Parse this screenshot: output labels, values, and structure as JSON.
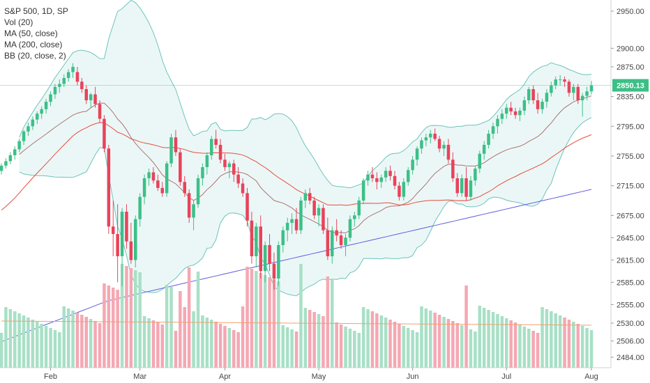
{
  "legend": {
    "line1": "S&P 500, 1D, SP",
    "line2": "Vol (20)",
    "line3": "MA (50, close)",
    "line4": "MA (200, close)",
    "line5": "BB (20, close, 2)"
  },
  "last_price": "2850.13",
  "colors": {
    "up": "#3dbf87",
    "down": "#e8435a",
    "up_vol": "#a8e0c6",
    "down_vol": "#f4a8b3",
    "ma50": "#e74c3c",
    "ma200": "#5b5bdc",
    "bb_band": "#6cc4b8",
    "bb_fill": "#e2f3f3",
    "bb_mid": "#b07070",
    "vol_ma": "#f0a070",
    "price_tag": "#3dbf87"
  },
  "chart_data": {
    "type": "candlestick",
    "title": "S&P 500, 1D, SP",
    "y_ticks": [
      "2950.00",
      "2900.00",
      "2875.00",
      "2835.00",
      "2795.00",
      "2755.00",
      "2715.00",
      "2675.00",
      "2645.00",
      "2615.00",
      "2585.00",
      "2555.00",
      "2530.00",
      "2506.00",
      "2484.00"
    ],
    "x_ticks": [
      "Feb",
      "Mar",
      "Apr",
      "May",
      "Jun",
      "Jul",
      "Aug"
    ],
    "ohlc": [
      [
        2735,
        2745,
        2730,
        2742
      ],
      [
        2742,
        2752,
        2738,
        2748
      ],
      [
        2748,
        2760,
        2744,
        2756
      ],
      [
        2756,
        2768,
        2750,
        2764
      ],
      [
        2764,
        2778,
        2760,
        2775
      ],
      [
        2775,
        2790,
        2770,
        2788
      ],
      [
        2788,
        2800,
        2782,
        2795
      ],
      [
        2795,
        2808,
        2790,
        2804
      ],
      [
        2804,
        2815,
        2798,
        2812
      ],
      [
        2812,
        2822,
        2805,
        2818
      ],
      [
        2818,
        2832,
        2812,
        2828
      ],
      [
        2828,
        2842,
        2822,
        2838
      ],
      [
        2838,
        2852,
        2832,
        2848
      ],
      [
        2848,
        2858,
        2840,
        2852
      ],
      [
        2852,
        2865,
        2848,
        2860
      ],
      [
        2860,
        2872,
        2855,
        2868
      ],
      [
        2868,
        2880,
        2860,
        2875
      ],
      [
        2868,
        2875,
        2850,
        2855
      ],
      [
        2855,
        2860,
        2840,
        2845
      ],
      [
        2845,
        2850,
        2825,
        2830
      ],
      [
        2830,
        2840,
        2820,
        2838
      ],
      [
        2838,
        2848,
        2820,
        2825
      ],
      [
        2825,
        2830,
        2800,
        2805
      ],
      [
        2805,
        2810,
        2760,
        2765
      ],
      [
        2765,
        2770,
        2650,
        2660
      ],
      [
        2660,
        2695,
        2620,
        2650
      ],
      [
        2650,
        2690,
        2585,
        2620
      ],
      [
        2620,
        2685,
        2580,
        2680
      ],
      [
        2680,
        2690,
        2630,
        2640
      ],
      [
        2640,
        2665,
        2610,
        2615
      ],
      [
        2615,
        2675,
        2605,
        2670
      ],
      [
        2670,
        2705,
        2660,
        2700
      ],
      [
        2700,
        2730,
        2690,
        2725
      ],
      [
        2725,
        2738,
        2715,
        2733
      ],
      [
        2733,
        2740,
        2718,
        2722
      ],
      [
        2722,
        2730,
        2708,
        2712
      ],
      [
        2712,
        2720,
        2700,
        2705
      ],
      [
        2705,
        2748,
        2700,
        2745
      ],
      [
        2745,
        2785,
        2740,
        2780
      ],
      [
        2780,
        2790,
        2755,
        2760
      ],
      [
        2760,
        2765,
        2715,
        2720
      ],
      [
        2720,
        2728,
        2700,
        2705
      ],
      [
        2705,
        2710,
        2665,
        2672
      ],
      [
        2672,
        2695,
        2655,
        2690
      ],
      [
        2690,
        2730,
        2685,
        2725
      ],
      [
        2725,
        2745,
        2715,
        2740
      ],
      [
        2740,
        2760,
        2730,
        2756
      ],
      [
        2756,
        2782,
        2750,
        2778
      ],
      [
        2778,
        2790,
        2765,
        2770
      ],
      [
        2770,
        2778,
        2745,
        2750
      ],
      [
        2750,
        2758,
        2735,
        2740
      ],
      [
        2740,
        2748,
        2725,
        2745
      ],
      [
        2745,
        2750,
        2720,
        2730
      ],
      [
        2730,
        2740,
        2712,
        2718
      ],
      [
        2718,
        2725,
        2700,
        2705
      ],
      [
        2705,
        2712,
        2660,
        2668
      ],
      [
        2668,
        2680,
        2610,
        2620
      ],
      [
        2620,
        2665,
        2605,
        2660
      ],
      [
        2660,
        2675,
        2590,
        2600
      ],
      [
        2600,
        2640,
        2585,
        2635
      ],
      [
        2635,
        2650,
        2600,
        2610
      ],
      [
        2610,
        2625,
        2575,
        2590
      ],
      [
        2590,
        2640,
        2580,
        2635
      ],
      [
        2635,
        2660,
        2625,
        2655
      ],
      [
        2655,
        2672,
        2640,
        2665
      ],
      [
        2665,
        2678,
        2650,
        2670
      ],
      [
        2670,
        2685,
        2650,
        2655
      ],
      [
        2655,
        2700,
        2650,
        2695
      ],
      [
        2695,
        2710,
        2685,
        2705
      ],
      [
        2705,
        2712,
        2690,
        2695
      ],
      [
        2695,
        2700,
        2670,
        2675
      ],
      [
        2675,
        2690,
        2660,
        2685
      ],
      [
        2685,
        2690,
        2650,
        2655
      ],
      [
        2655,
        2672,
        2615,
        2620
      ],
      [
        2620,
        2660,
        2610,
        2655
      ],
      [
        2655,
        2670,
        2640,
        2648
      ],
      [
        2648,
        2655,
        2630,
        2635
      ],
      [
        2635,
        2650,
        2620,
        2645
      ],
      [
        2645,
        2675,
        2640,
        2670
      ],
      [
        2670,
        2680,
        2660,
        2675
      ],
      [
        2675,
        2700,
        2670,
        2695
      ],
      [
        2695,
        2725,
        2690,
        2722
      ],
      [
        2722,
        2735,
        2715,
        2730
      ],
      [
        2730,
        2740,
        2720,
        2725
      ],
      [
        2725,
        2733,
        2710,
        2720
      ],
      [
        2720,
        2730,
        2712,
        2726
      ],
      [
        2726,
        2740,
        2720,
        2735
      ],
      [
        2735,
        2742,
        2722,
        2728
      ],
      [
        2728,
        2735,
        2710,
        2715
      ],
      [
        2715,
        2720,
        2695,
        2700
      ],
      [
        2700,
        2725,
        2695,
        2720
      ],
      [
        2720,
        2740,
        2715,
        2736
      ],
      [
        2736,
        2755,
        2730,
        2750
      ],
      [
        2750,
        2768,
        2742,
        2765
      ],
      [
        2765,
        2780,
        2758,
        2776
      ],
      [
        2776,
        2785,
        2768,
        2780
      ],
      [
        2780,
        2790,
        2772,
        2785
      ],
      [
        2785,
        2792,
        2775,
        2778
      ],
      [
        2778,
        2782,
        2760,
        2765
      ],
      [
        2765,
        2775,
        2755,
        2770
      ],
      [
        2770,
        2778,
        2745,
        2750
      ],
      [
        2750,
        2760,
        2720,
        2725
      ],
      [
        2725,
        2732,
        2700,
        2705
      ],
      [
        2705,
        2730,
        2700,
        2725
      ],
      [
        2725,
        2740,
        2695,
        2700
      ],
      [
        2700,
        2728,
        2695,
        2722
      ],
      [
        2722,
        2742,
        2715,
        2738
      ],
      [
        2738,
        2762,
        2732,
        2758
      ],
      [
        2758,
        2775,
        2750,
        2770
      ],
      [
        2770,
        2790,
        2765,
        2785
      ],
      [
        2785,
        2800,
        2778,
        2795
      ],
      [
        2795,
        2810,
        2785,
        2805
      ],
      [
        2805,
        2818,
        2798,
        2812
      ],
      [
        2812,
        2825,
        2805,
        2820
      ],
      [
        2820,
        2828,
        2810,
        2815
      ],
      [
        2815,
        2820,
        2805,
        2810
      ],
      [
        2810,
        2820,
        2802,
        2816
      ],
      [
        2816,
        2835,
        2810,
        2830
      ],
      [
        2830,
        2848,
        2825,
        2845
      ],
      [
        2845,
        2850,
        2825,
        2830
      ],
      [
        2830,
        2840,
        2812,
        2818
      ],
      [
        2818,
        2832,
        2812,
        2828
      ],
      [
        2828,
        2845,
        2820,
        2840
      ],
      [
        2840,
        2855,
        2835,
        2850
      ],
      [
        2850,
        2862,
        2845,
        2858
      ],
      [
        2858,
        2864,
        2850,
        2858
      ],
      [
        2858,
        2862,
        2848,
        2855
      ],
      [
        2855,
        2858,
        2835,
        2840
      ],
      [
        2840,
        2852,
        2830,
        2848
      ],
      [
        2848,
        2852,
        2825,
        2830
      ],
      [
        2830,
        2840,
        2808,
        2836
      ],
      [
        2836,
        2848,
        2830,
        2842
      ],
      [
        2842,
        2856,
        2838,
        2850
      ]
    ],
    "ma200": [
      2505,
      2510,
      2515,
      2520,
      2525,
      2530,
      2535,
      2540,
      2545,
      2550,
      2555,
      2560,
      2563,
      2566,
      2569,
      2572,
      2575,
      2578,
      2581,
      2584,
      2587,
      2590,
      2593,
      2596,
      2599,
      2602,
      2605,
      2608,
      2611,
      2614,
      2617,
      2620,
      2623,
      2626,
      2629,
      2632,
      2635,
      2638,
      2641,
      2644,
      2647,
      2650,
      2653,
      2656,
      2659,
      2662,
      2665,
      2668,
      2671,
      2674,
      2677,
      2680,
      2683,
      2686,
      2689,
      2692,
      2695,
      2698,
      2701,
      2704,
      2707,
      2710
    ],
    "vol_ma_level": 2530,
    "x_labels_note": "",
    "ylim": [
      2470,
      2965
    ]
  }
}
